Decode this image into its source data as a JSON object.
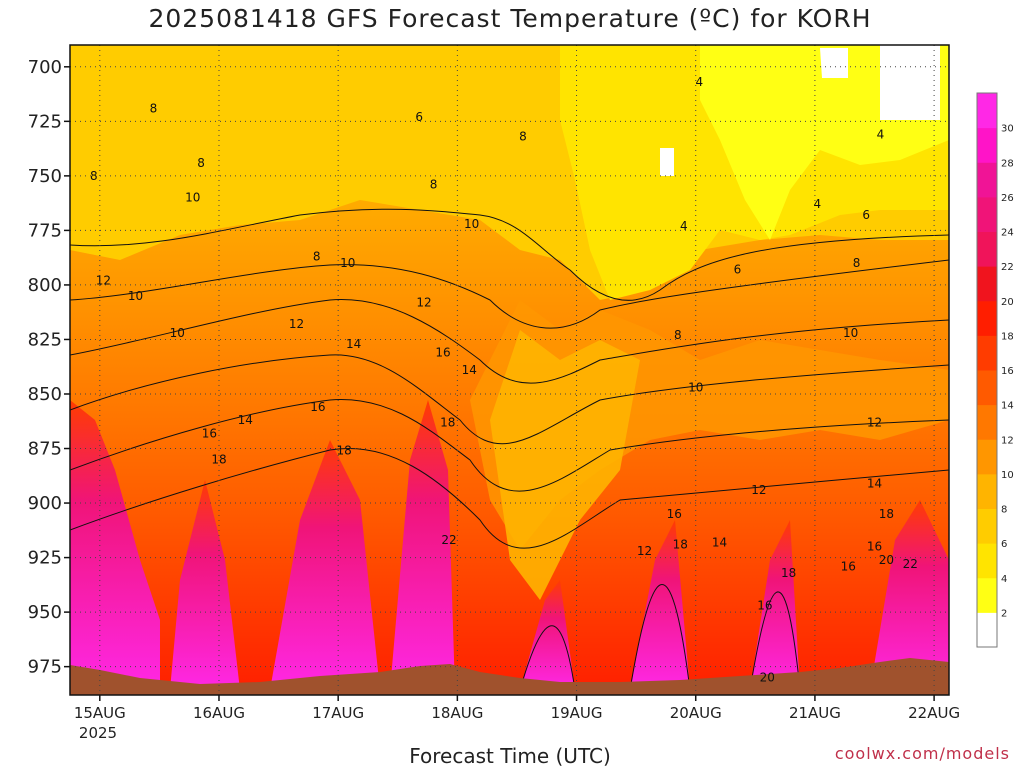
{
  "title": "2025081418 GFS Forecast Temperature (ºC) for KORH",
  "x_axis_title": "Forecast Time (UTC)",
  "credit": "coolwx.com/models",
  "year_label": "2025",
  "chart_data": {
    "type": "heatmap",
    "title": "2025081418 GFS Forecast Temperature (ºC) for KORH",
    "xlabel": "Forecast Time (UTC)",
    "ylabel": "",
    "x_tick_labels": [
      "15AUG",
      "16AUG",
      "17AUG",
      "18AUG",
      "19AUG",
      "20AUG",
      "21AUG",
      "22AUG"
    ],
    "y_tick_labels": [
      700,
      725,
      750,
      775,
      800,
      825,
      850,
      875,
      900,
      925,
      950,
      975
    ],
    "y_range": [
      690,
      988
    ],
    "x_range_days": [
      14.75,
      22.125
    ],
    "y_inverted": true,
    "grid": true,
    "colorbar": {
      "levels": [
        2,
        4,
        6,
        8,
        10,
        12,
        14,
        16,
        18,
        20,
        22,
        24,
        26,
        28,
        30
      ],
      "colors": [
        "#ffffff",
        "#ffff14",
        "#ffe400",
        "#ffcc00",
        "#ffb400",
        "#ff9600",
        "#ff7800",
        "#ff5a00",
        "#ff3c00",
        "#ff1e00",
        "#f0141e",
        "#f0145a",
        "#f01478",
        "#f01496",
        "#ff14c8",
        "#ff28e6"
      ],
      "placement": "right"
    },
    "contour_labels": [
      {
        "x": 14.95,
        "p": 750,
        "v": "8"
      },
      {
        "x": 15.3,
        "p": 805,
        "v": "10"
      },
      {
        "x": 15.45,
        "p": 719,
        "v": "8"
      },
      {
        "x": 15.85,
        "p": 744,
        "v": "8"
      },
      {
        "x": 15.78,
        "p": 760,
        "v": "10"
      },
      {
        "x": 15.65,
        "p": 822,
        "v": "10"
      },
      {
        "x": 15.03,
        "p": 798,
        "v": "12"
      },
      {
        "x": 15.92,
        "p": 868,
        "v": "16"
      },
      {
        "x": 16.0,
        "p": 880,
        "v": "18"
      },
      {
        "x": 16.22,
        "p": 862,
        "v": "14"
      },
      {
        "x": 16.65,
        "p": 818,
        "v": "12"
      },
      {
        "x": 16.82,
        "p": 787,
        "v": "8"
      },
      {
        "x": 17.08,
        "p": 790,
        "v": "10"
      },
      {
        "x": 17.68,
        "p": 723,
        "v": "6"
      },
      {
        "x": 17.8,
        "p": 754,
        "v": "8"
      },
      {
        "x": 17.13,
        "p": 827,
        "v": "14"
      },
      {
        "x": 16.83,
        "p": 856,
        "v": "16"
      },
      {
        "x": 17.05,
        "p": 876,
        "v": "18"
      },
      {
        "x": 17.72,
        "p": 808,
        "v": "12"
      },
      {
        "x": 17.88,
        "p": 831,
        "v": "16"
      },
      {
        "x": 18.1,
        "p": 839,
        "v": "14"
      },
      {
        "x": 18.12,
        "p": 772,
        "v": "10"
      },
      {
        "x": 18.55,
        "p": 732,
        "v": "8"
      },
      {
        "x": 17.92,
        "p": 863,
        "v": "18"
      },
      {
        "x": 17.93,
        "p": 917,
        "v": "22"
      },
      {
        "x": 20.03,
        "p": 707,
        "v": "4"
      },
      {
        "x": 19.9,
        "p": 773,
        "v": "4"
      },
      {
        "x": 20.35,
        "p": 793,
        "v": "6"
      },
      {
        "x": 19.85,
        "p": 823,
        "v": "8"
      },
      {
        "x": 20.0,
        "p": 847,
        "v": "10"
      },
      {
        "x": 21.55,
        "p": 731,
        "v": "4"
      },
      {
        "x": 21.02,
        "p": 763,
        "v": "4"
      },
      {
        "x": 21.43,
        "p": 768,
        "v": "6"
      },
      {
        "x": 21.35,
        "p": 790,
        "v": "8"
      },
      {
        "x": 21.3,
        "p": 822,
        "v": "10"
      },
      {
        "x": 21.5,
        "p": 863,
        "v": "12"
      },
      {
        "x": 20.53,
        "p": 894,
        "v": "12"
      },
      {
        "x": 19.57,
        "p": 922,
        "v": "12"
      },
      {
        "x": 20.2,
        "p": 918,
        "v": "14"
      },
      {
        "x": 19.82,
        "p": 905,
        "v": "16"
      },
      {
        "x": 19.87,
        "p": 919,
        "v": "18"
      },
      {
        "x": 21.5,
        "p": 891,
        "v": "14"
      },
      {
        "x": 21.6,
        "p": 905,
        "v": "18"
      },
      {
        "x": 21.5,
        "p": 920,
        "v": "16"
      },
      {
        "x": 21.6,
        "p": 926,
        "v": "20"
      },
      {
        "x": 21.8,
        "p": 928,
        "v": "22"
      },
      {
        "x": 20.78,
        "p": 932,
        "v": "18"
      },
      {
        "x": 21.28,
        "p": 929,
        "v": "16"
      },
      {
        "x": 20.58,
        "p": 947,
        "v": "16"
      },
      {
        "x": 20.6,
        "p": 980,
        "v": "20"
      }
    ]
  }
}
